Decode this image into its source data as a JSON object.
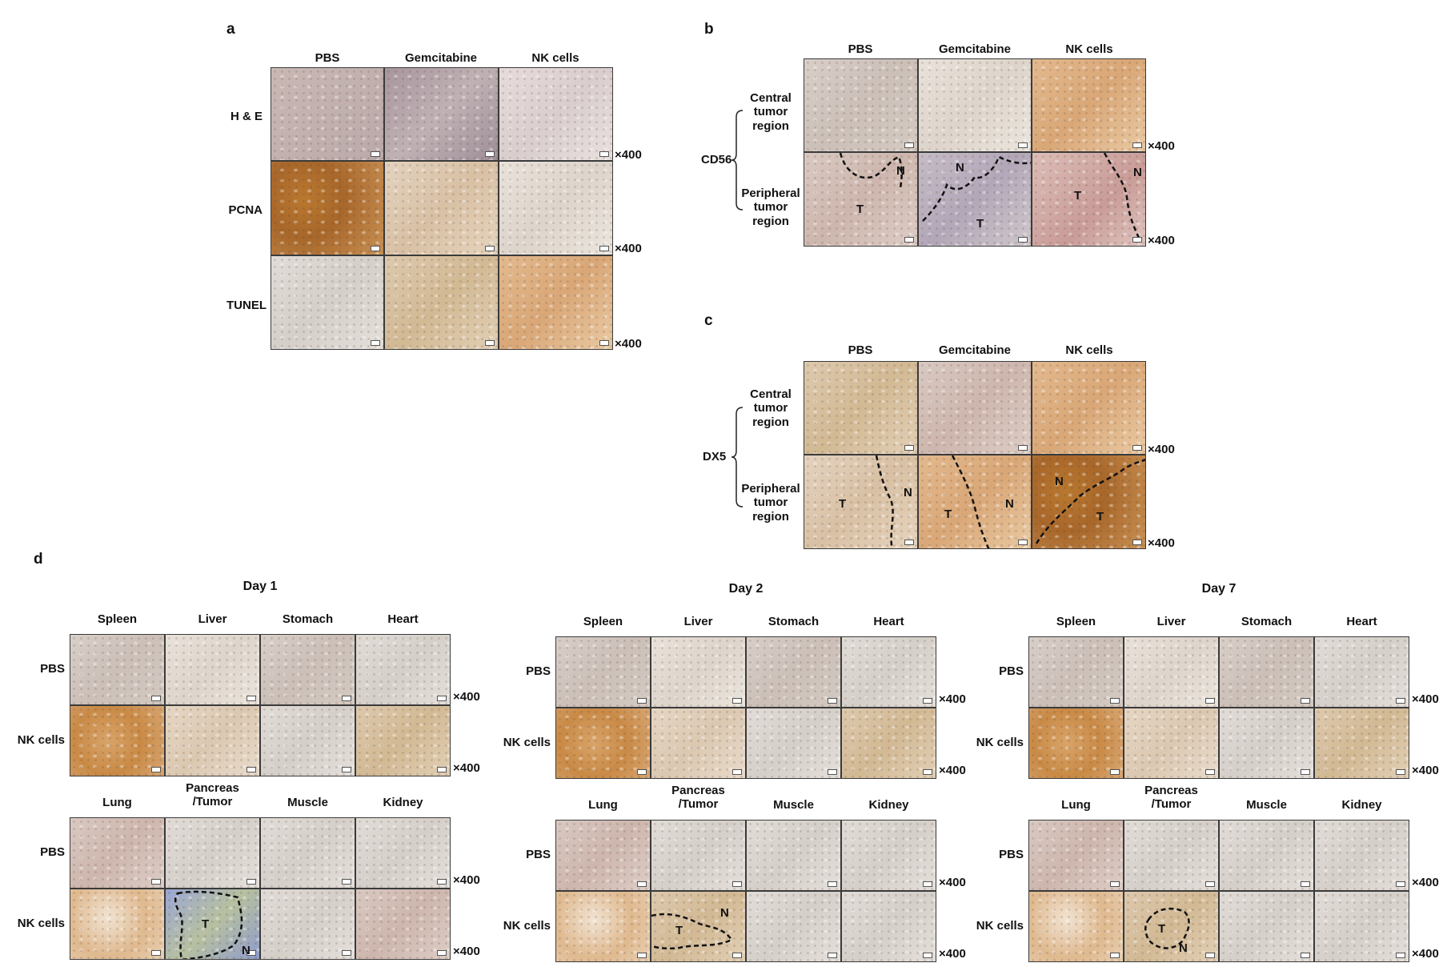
{
  "panel_a": {
    "letter": "a",
    "columns": [
      "PBS",
      "Gemcitabine",
      "NK cells"
    ],
    "rows": [
      "H & E",
      "PCNA",
      "TUNEL"
    ],
    "magnification": "×400"
  },
  "panel_b": {
    "letter": "b",
    "columns": [
      "PBS",
      "Gemcitabine",
      "NK cells"
    ],
    "marker": "CD56",
    "row1": [
      "Central",
      "tumor",
      "region"
    ],
    "row2": [
      "Peripheral",
      "tumor",
      "region"
    ],
    "magnification": "×400",
    "T": "T",
    "N": "N"
  },
  "panel_c": {
    "letter": "c",
    "columns": [
      "PBS",
      "Gemcitabine",
      "NK cells"
    ],
    "marker": "DX5",
    "row1": [
      "Central",
      "tumor",
      "region"
    ],
    "row2": [
      "Peripheral",
      "tumor",
      "region"
    ],
    "magnification": "×400",
    "T": "T",
    "N": "N"
  },
  "panel_d": {
    "letter": "d",
    "days": [
      "Day 1",
      "Day 2",
      "Day 7"
    ],
    "organs_top": [
      "Spleen",
      "Liver",
      "Stomach",
      "Heart"
    ],
    "organs_bottom": [
      "Lung",
      "Pancreas\n/Tumor",
      "Muscle",
      "Kidney"
    ],
    "row_labels": [
      "PBS",
      "NK cells"
    ],
    "magnification": "×400",
    "T": "T",
    "N": "N"
  }
}
